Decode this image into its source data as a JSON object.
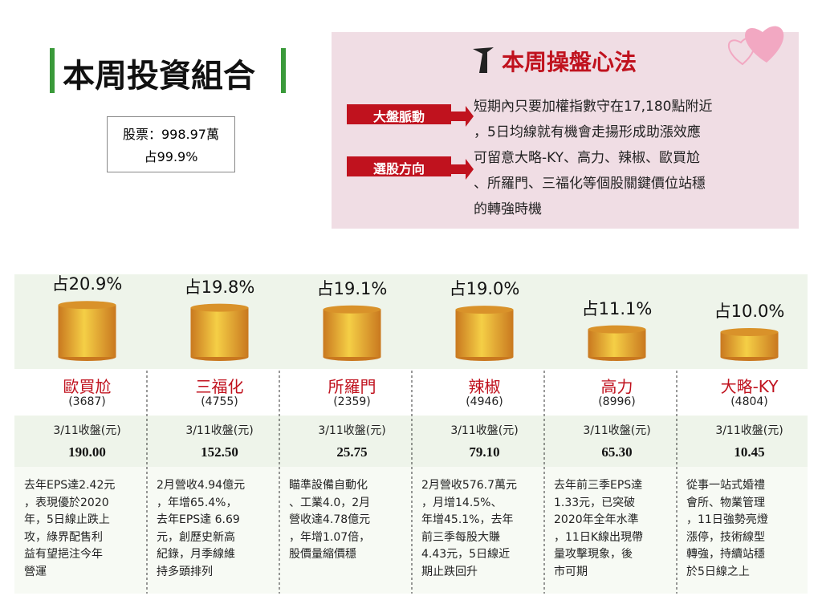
{
  "header": {
    "title": "本周投資組合",
    "holding_line1": "股票：998.97萬",
    "holding_line2": "占99.9%"
  },
  "strategy": {
    "title": "本周操盤心法",
    "tags": [
      "大盤脈動",
      "選股方向"
    ],
    "lines": [
      "短期內只要加權指數守在17,180點附近",
      "，5日均線就有機會走揚形成助漲效應",
      "可留意大略-KY、高力、辣椒、歐買尬",
      "、所羅門、三福化等個股關鍵價位站穩",
      "的轉強時機"
    ]
  },
  "chart_data": {
    "type": "bar",
    "categories": [
      "歐買尬",
      "三福化",
      "所羅門",
      "辣椒",
      "高力",
      "大略-KY"
    ],
    "values": [
      20.9,
      19.8,
      19.1,
      19.0,
      11.1,
      10.0
    ],
    "value_labels": [
      "占20.9%",
      "占19.8%",
      "占19.1%",
      "占19.0%",
      "占11.1%",
      "占10.0%"
    ],
    "color": "#d9922a"
  },
  "stocks": [
    {
      "code": "(3687)",
      "close_label": "3/11收盤(元)",
      "price": "190.00",
      "desc": [
        "去年EPS達2.42元",
        "，表現優於2020",
        "年，5日線止跌上",
        "攻，綠界配售利",
        "益有望挹注今年",
        "營運"
      ]
    },
    {
      "code": "(4755)",
      "close_label": "3/11收盤(元)",
      "price": "152.50",
      "desc": [
        "2月營收4.94億元",
        "，年增65.4%，",
        "去年EPS達 6.69",
        "元，創歷史新高",
        "紀錄，月季線維",
        "持多頭排列"
      ]
    },
    {
      "code": "(2359)",
      "close_label": "3/11收盤(元)",
      "price": "25.75",
      "desc": [
        "瞄準設備自動化",
        "、工業4.0，2月",
        "營收達4.78億元",
        "，年增1.07倍，",
        "股價量縮價穩"
      ]
    },
    {
      "code": "(4946)",
      "close_label": "3/11收盤(元)",
      "price": "79.10",
      "desc": [
        "2月營收576.7萬元",
        "，月增14.5%、",
        "年增45.1%，去年",
        "前三季每股大賺",
        "4.43元，5日線近",
        "期止跌回升"
      ]
    },
    {
      "code": "(8996)",
      "close_label": "3/11收盤(元)",
      "price": "65.30",
      "desc": [
        "去年前三季EPS達",
        "1.33元，已突破",
        "2020年全年水準",
        "，11日K線出現帶",
        "量攻擊現象，後",
        "市可期"
      ]
    },
    {
      "code": "(4804)",
      "close_label": "3/11收盤(元)",
      "price": "10.45",
      "desc": [
        "從事一站式婚禮",
        "會所、物業管理",
        "，11日強勢亮燈",
        "漲停，技術線型",
        "轉強，持續站穩",
        "於5日線之上"
      ]
    }
  ]
}
